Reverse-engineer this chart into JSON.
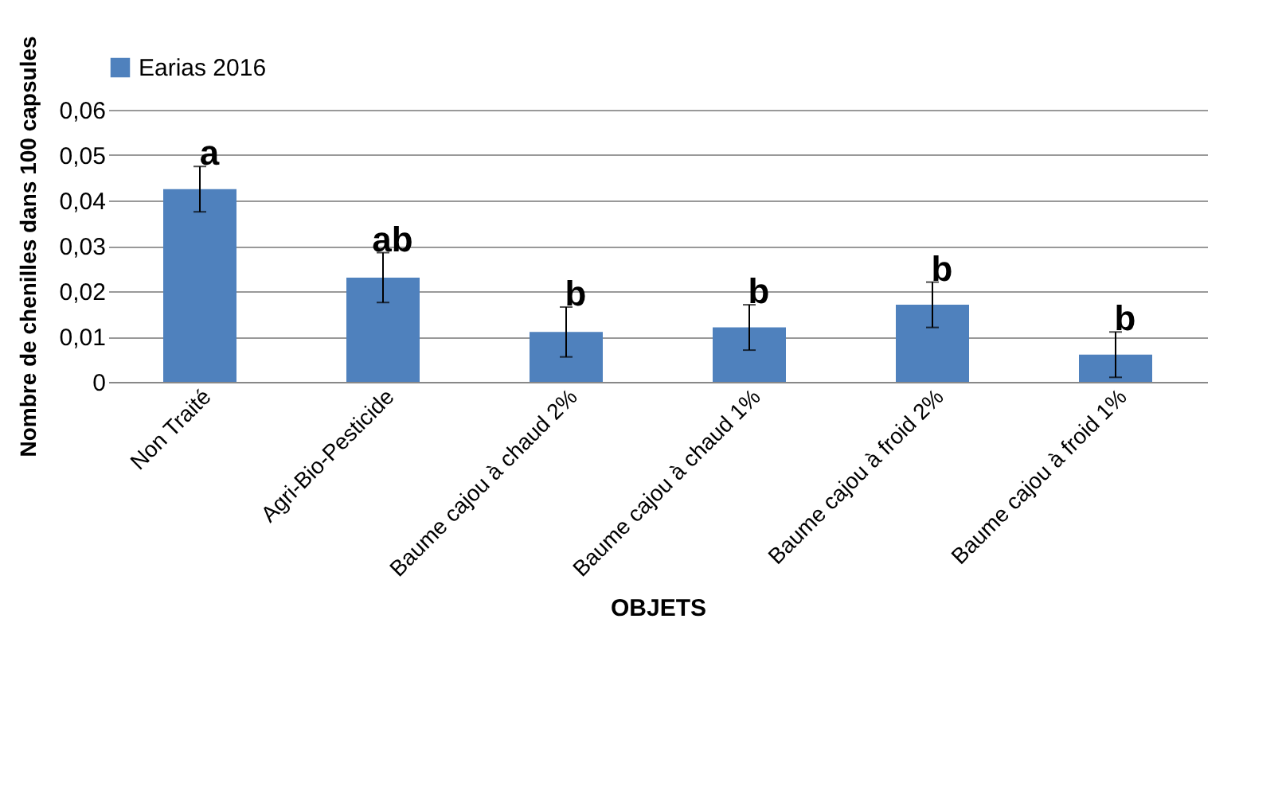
{
  "chart_data": {
    "type": "bar",
    "xlabel": "OBJETS",
    "ylabel": "Nombre de chenilles dans 100 capsules",
    "categories": [
      "Non Traité",
      "Agri-Bio-Pesticide",
      "Baume cajou à chaud 2%",
      "Baume cajou à chaud 1%",
      "Baume cajou à froid 2%",
      "Baume cajou à froid 1%"
    ],
    "series": [
      {
        "name": "Earias 2016",
        "color": "#4f81bd",
        "values": [
          0.0425,
          0.023,
          0.011,
          0.012,
          0.017,
          0.006
        ],
        "errors": [
          0.005,
          0.0055,
          0.0055,
          0.005,
          0.005,
          0.005
        ]
      }
    ],
    "ylim": [
      0,
      0.06
    ],
    "yticks": [
      {
        "value": 0,
        "label": "0"
      },
      {
        "value": 0.01,
        "label": "0,01"
      },
      {
        "value": 0.02,
        "label": "0,02"
      },
      {
        "value": 0.03,
        "label": "0,03"
      },
      {
        "value": 0.04,
        "label": "0,04"
      },
      {
        "value": 0.05,
        "label": "0,05"
      },
      {
        "value": 0.06,
        "label": "0,06"
      }
    ],
    "grid": "y",
    "legend": "top",
    "annotations": [
      {
        "text": "a",
        "x": "Non Traité",
        "y": 0.0475
      },
      {
        "text": "ab",
        "x": "Agri-Bio-Pesticide",
        "y": 0.0285
      },
      {
        "text": "b",
        "x": "Baume cajou à chaud 2%",
        "y": 0.0165
      },
      {
        "text": "b",
        "x": "Baume cajou à chaud 1%",
        "y": 0.017
      },
      {
        "text": "b",
        "x": "Baume cajou à froid 2%",
        "y": 0.022
      },
      {
        "text": "b",
        "x": "Baume cajou à froid 1%",
        "y": 0.011
      }
    ]
  }
}
